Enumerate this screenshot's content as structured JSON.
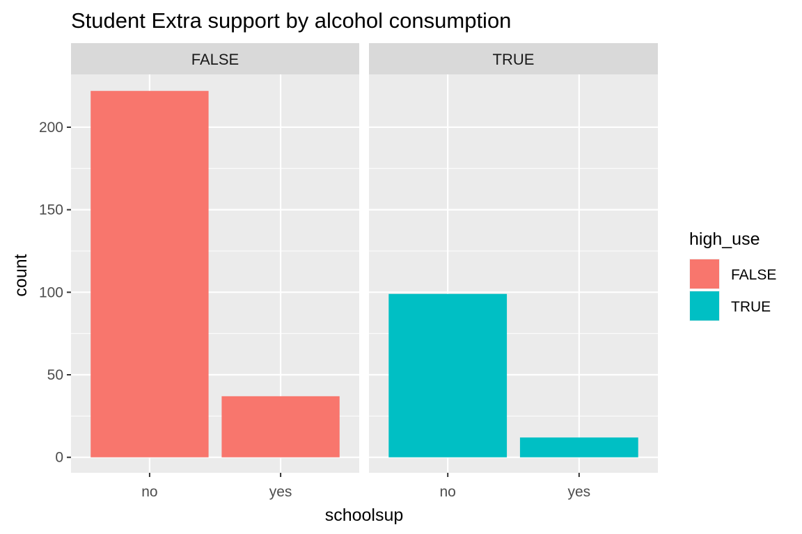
{
  "chart_data": {
    "type": "bar",
    "title": "Student Extra support by alcohol consumption",
    "xlabel": "schoolsup",
    "ylabel": "count",
    "ylim": [
      -9.4,
      232
    ],
    "yticks": [
      0,
      50,
      100,
      150,
      200
    ],
    "categories": [
      "no",
      "yes"
    ],
    "grid": true,
    "facets": [
      {
        "label": "FALSE",
        "fill": "FALSE",
        "values": [
          222,
          37
        ]
      },
      {
        "label": "TRUE",
        "fill": "TRUE",
        "values": [
          99,
          12
        ]
      }
    ],
    "legend": {
      "title": "high_use",
      "position": "right",
      "items": [
        {
          "label": "FALSE",
          "color": "#F8766D"
        },
        {
          "label": "TRUE",
          "color": "#00BFC4"
        }
      ]
    }
  }
}
